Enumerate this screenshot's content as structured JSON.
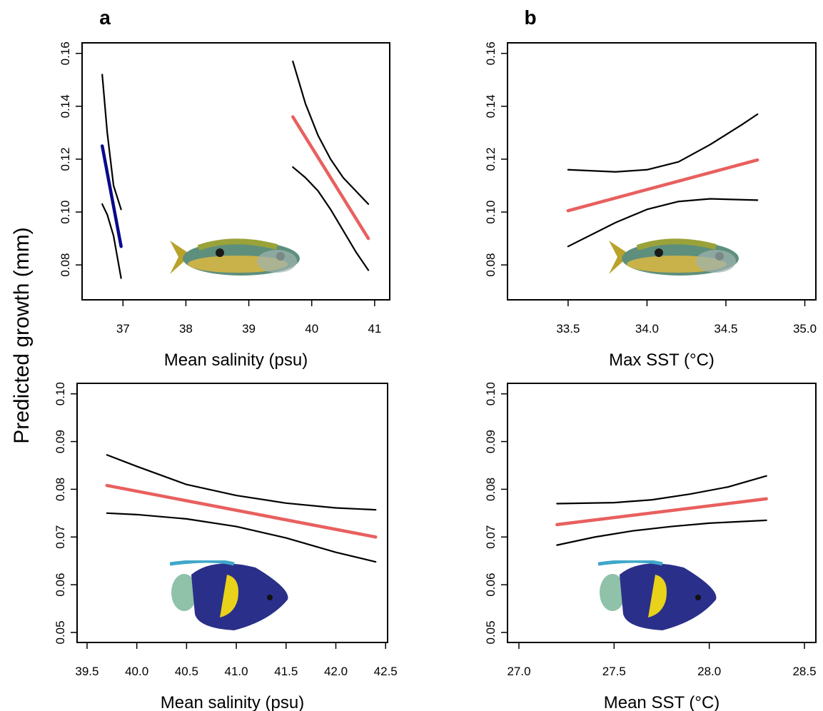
{
  "shared": {
    "ylabel": "Predicted growth (mm)"
  },
  "chart_data": [
    {
      "type": "line",
      "panel_label": "a",
      "xlabel": "Mean salinity (psu)",
      "xlim": [
        36.35,
        41.24
      ],
      "xticks": [
        37,
        38,
        39,
        40,
        41
      ],
      "ylim": [
        0.0668,
        0.164
      ],
      "yticks": [
        0.08,
        {
          "value": 0.1,
          "label": "0.10"
        },
        0.12,
        0.14,
        0.16
      ],
      "series": [
        {
          "color": "#000000",
          "x": [
            36.67,
            36.75,
            36.85,
            36.97
          ],
          "values": [
            0.152,
            0.13,
            0.11,
            0.101
          ]
        },
        {
          "color": "#000000",
          "x": [
            36.67,
            36.75,
            36.85,
            36.97
          ],
          "values": [
            0.103,
            0.099,
            0.091,
            0.075
          ]
        },
        {
          "color": "#0a0a8c",
          "x": [
            36.67,
            36.97
          ],
          "values": [
            0.125,
            0.087
          ]
        },
        {
          "color": "#000000",
          "x": [
            39.7,
            39.9,
            40.1,
            40.3,
            40.5,
            40.7,
            40.9
          ],
          "values": [
            0.157,
            0.141,
            0.129,
            0.12,
            0.113,
            0.108,
            0.103
          ]
        },
        {
          "color": "#000000",
          "x": [
            39.7,
            39.9,
            40.1,
            40.3,
            40.5,
            40.7,
            40.9
          ],
          "values": [
            0.117,
            0.113,
            0.108,
            0.101,
            0.093,
            0.085,
            0.078
          ]
        },
        {
          "color": "#e8605f",
          "x": [
            39.7,
            40.9
          ],
          "values": [
            0.136,
            0.09
          ]
        }
      ]
    },
    {
      "type": "line",
      "panel_label": "b",
      "xlabel": "Max SST (°C)",
      "xlim": [
        33.116,
        35.07
      ],
      "xticks": [
        33.5,
        {
          "value": 34,
          "label": "34.0"
        },
        34.5,
        {
          "value": 35,
          "label": "35.0"
        }
      ],
      "ylim": [
        0.0668,
        0.164
      ],
      "yticks": [
        0.08,
        {
          "value": 0.1,
          "label": "0.10"
        },
        0.12,
        0.14,
        0.16
      ],
      "series": [
        {
          "color": "#000000",
          "x": [
            33.5,
            33.8,
            34.0,
            34.2,
            34.4,
            34.6,
            34.7
          ],
          "values": [
            0.116,
            0.1152,
            0.116,
            0.119,
            0.1255,
            0.133,
            0.137
          ]
        },
        {
          "color": "#000000",
          "x": [
            33.5,
            33.8,
            34.0,
            34.2,
            34.4,
            34.7
          ],
          "values": [
            0.087,
            0.096,
            0.101,
            0.104,
            0.105,
            0.1045
          ]
        },
        {
          "color": "#e8605f",
          "x": [
            33.5,
            34.7
          ],
          "values": [
            0.1005,
            0.1197
          ]
        }
      ]
    },
    {
      "type": "line",
      "xlabel": "Mean salinity (psu)",
      "xlim": [
        39.4,
        42.52
      ],
      "xticks": [
        39.5,
        {
          "value": 40,
          "label": "40.0"
        },
        40.5,
        {
          "value": 41,
          "label": "41.0"
        },
        41.5,
        {
          "value": 42,
          "label": "42.0"
        },
        42.5
      ],
      "ylim": [
        0.0479,
        0.1022
      ],
      "yticks": [
        0.05,
        0.06,
        0.07,
        0.08,
        0.09,
        {
          "value": 0.1,
          "label": "0.10"
        }
      ],
      "series": [
        {
          "color": "#000000",
          "x": [
            39.7,
            40.0,
            40.5,
            41.0,
            41.5,
            42.0,
            42.4
          ],
          "values": [
            0.0872,
            0.0848,
            0.081,
            0.0787,
            0.0771,
            0.0761,
            0.0757
          ]
        },
        {
          "color": "#000000",
          "x": [
            39.7,
            40.0,
            40.5,
            41.0,
            41.5,
            42.0,
            42.4
          ],
          "values": [
            0.075,
            0.0747,
            0.0738,
            0.0722,
            0.0698,
            0.0668,
            0.0648
          ]
        },
        {
          "color": "#e8605f",
          "x": [
            39.7,
            42.4
          ],
          "values": [
            0.0808,
            0.07
          ]
        }
      ]
    },
    {
      "type": "line",
      "xlabel": "Mean SST (°C)",
      "xlim": [
        26.94,
        28.56
      ],
      "xticks": [
        {
          "value": 27,
          "label": "27.0"
        },
        27.5,
        {
          "value": 28,
          "label": "28.0"
        },
        28.5
      ],
      "ylim": [
        0.0479,
        0.1022
      ],
      "yticks": [
        0.05,
        0.06,
        0.07,
        0.08,
        0.09,
        {
          "value": 0.1,
          "label": "0.10"
        }
      ],
      "series": [
        {
          "color": "#000000",
          "x": [
            27.2,
            27.5,
            27.7,
            27.9,
            28.1,
            28.3
          ],
          "values": [
            0.077,
            0.0772,
            0.0778,
            0.079,
            0.0805,
            0.0828
          ]
        },
        {
          "color": "#000000",
          "x": [
            27.2,
            27.4,
            27.6,
            27.8,
            28.0,
            28.3
          ],
          "values": [
            0.0683,
            0.07,
            0.0713,
            0.0722,
            0.0729,
            0.0735
          ]
        },
        {
          "color": "#e8605f",
          "x": [
            27.2,
            28.3
          ],
          "values": [
            0.0726,
            0.078
          ]
        }
      ]
    }
  ]
}
